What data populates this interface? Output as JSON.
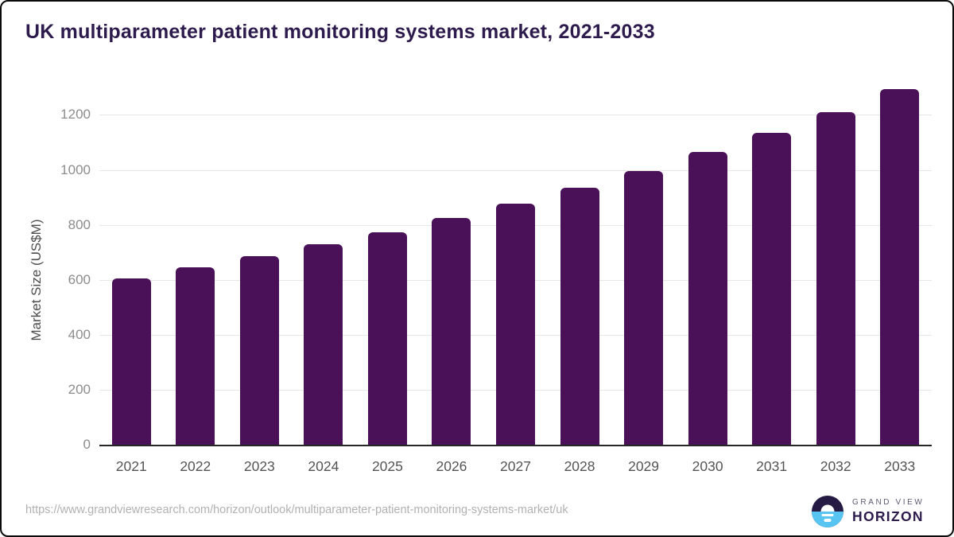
{
  "title": "UK multiparameter patient monitoring systems market, 2021-2033",
  "footer": {
    "source_url": "https://www.grandviewresearch.com/horizon/outlook/multiparameter-patient-monitoring-systems-market/uk"
  },
  "logo": {
    "line1": "GRAND VIEW",
    "line2": "HORIZON"
  },
  "colors": {
    "bar": "#4a1158",
    "title": "#2e1b4e",
    "logo_dark": "#241a43",
    "logo_blue": "#57c4f2"
  },
  "chart_data": {
    "type": "bar",
    "title": "UK multiparameter patient monitoring systems market, 2021-2033",
    "xlabel": "",
    "ylabel": "Market Size (US$M)",
    "categories": [
      "2021",
      "2022",
      "2023",
      "2024",
      "2025",
      "2026",
      "2027",
      "2028",
      "2029",
      "2030",
      "2031",
      "2032",
      "2033"
    ],
    "values": [
      605,
      644,
      685,
      728,
      773,
      826,
      878,
      935,
      996,
      1064,
      1136,
      1210,
      1293
    ],
    "yticks": [
      0,
      200,
      400,
      600,
      800,
      1000,
      1200
    ],
    "ylim": [
      0,
      1330
    ],
    "grid": true,
    "legend": false,
    "bar_color": "#4a1158"
  }
}
